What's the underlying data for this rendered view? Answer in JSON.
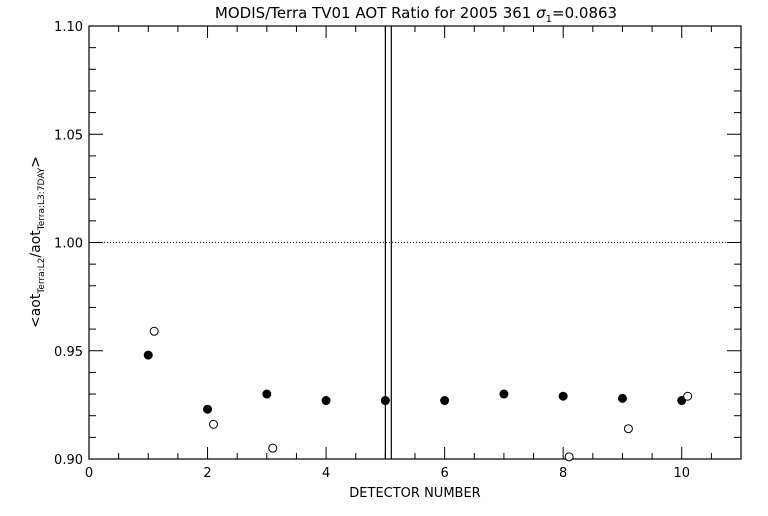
{
  "chart_data": {
    "type": "scatter",
    "title": "MODIS/Terra TV01 AOT Ratio for 2005 361",
    "title_sigma": {
      "symbol": "σ",
      "subscript": "1",
      "value": "=0.0863"
    },
    "xlabel": "DETECTOR NUMBER",
    "ylabel": {
      "open": "<aot",
      "sub1": "Terra:L2",
      "mid": "/aot",
      "sub2": "Terra:L3:7DAY",
      "close": ">"
    },
    "xlim": [
      0,
      11
    ],
    "ylim": [
      0.9,
      1.1
    ],
    "x_ticks": [
      0,
      2,
      4,
      6,
      8,
      10
    ],
    "x_tick_labels": [
      "0",
      "2",
      "4",
      "6",
      "8",
      "10"
    ],
    "x_minor_step": 0.5,
    "y_ticks": [
      0.9,
      0.95,
      1.0,
      1.05,
      1.1
    ],
    "y_tick_labels": [
      "0.90",
      "0.95",
      "1.00",
      "1.05",
      "1.10"
    ],
    "y_minor_step": 0.01,
    "reference_line_y": 1.0,
    "vertical_lines_x": [
      5.0,
      5.1
    ],
    "series": [
      {
        "name": "filled",
        "marker": "filled-circle",
        "x": [
          1,
          2,
          3,
          4,
          5,
          6,
          7,
          8,
          9,
          10
        ],
        "y": [
          0.948,
          0.923,
          0.93,
          0.927,
          0.927,
          0.927,
          0.93,
          0.929,
          0.928,
          0.927
        ]
      },
      {
        "name": "open",
        "marker": "open-circle",
        "x": [
          1.1,
          2.1,
          3.1,
          8.1,
          9.1,
          10.1
        ],
        "y": [
          0.959,
          0.916,
          0.905,
          0.901,
          0.914,
          0.929
        ]
      }
    ]
  }
}
